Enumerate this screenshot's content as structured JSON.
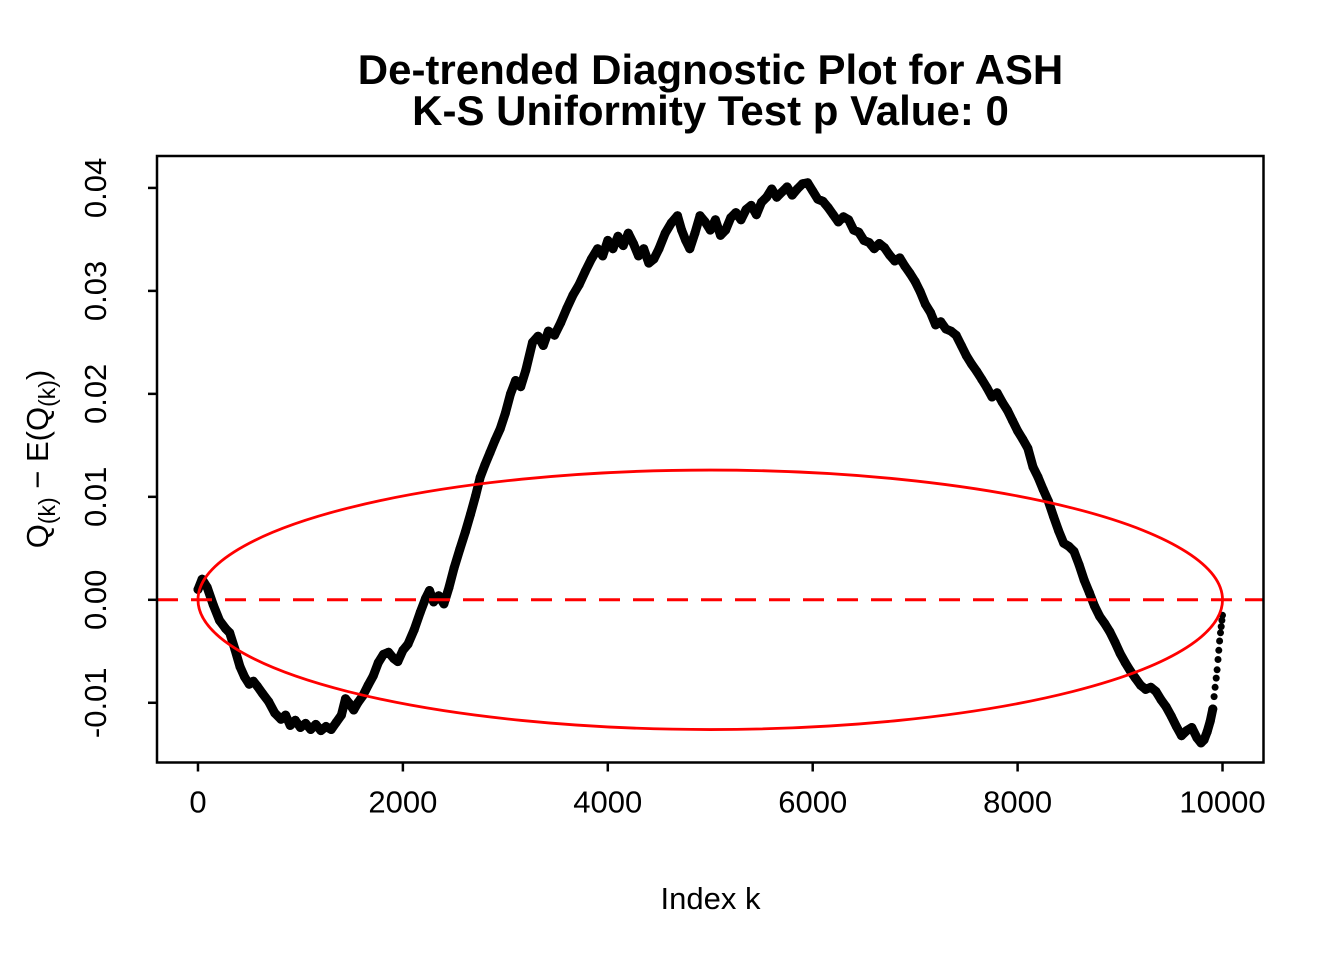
{
  "chart_data": {
    "type": "line",
    "title_lines": [
      "De-trended Diagnostic Plot for ASH",
      "K-S Uniformity Test p Value: 0"
    ],
    "ks_test_p_value": 0,
    "xlabel": "Index k",
    "ylabel": "Q(k) − E(Q(k))",
    "ylabel_parts": [
      {
        "t": "Q"
      },
      {
        "t": "(k)",
        "sub": true
      },
      {
        "t": " − E(Q"
      },
      {
        "t": "(k)",
        "sub": true
      },
      {
        "t": ")"
      }
    ],
    "xlim": [
      -400,
      10400
    ],
    "ylim": [
      -0.0158,
      0.0431
    ],
    "xticks": [
      0,
      2000,
      4000,
      6000,
      8000,
      10000
    ],
    "xtick_labels": [
      "0",
      "2000",
      "4000",
      "6000",
      "8000",
      "10000"
    ],
    "yticks": [
      -0.01,
      0.0,
      0.01,
      0.02,
      0.03,
      0.04
    ],
    "ytick_labels": [
      "-0.01",
      "0.00",
      "0.01",
      "0.02",
      "0.03",
      "0.04"
    ],
    "grid": false,
    "legend": null,
    "colors": {
      "series": "#000000",
      "reference": "#FF0000",
      "box": "#000000"
    },
    "series": [
      {
        "name": "detrended-order-statistics",
        "type": "points",
        "color": "#000000",
        "points": [
          [
            0,
            0.001
          ],
          [
            40,
            0.002
          ],
          [
            90,
            0.0012
          ],
          [
            150,
            -0.0005
          ],
          [
            210,
            -0.002
          ],
          [
            270,
            -0.0028
          ],
          [
            310,
            -0.0032
          ],
          [
            360,
            -0.0048
          ],
          [
            410,
            -0.0065
          ],
          [
            455,
            -0.0075
          ],
          [
            500,
            -0.0082
          ],
          [
            540,
            -0.0079
          ],
          [
            580,
            -0.0084
          ],
          [
            630,
            -0.0091
          ],
          [
            690,
            -0.0099
          ],
          [
            750,
            -0.011
          ],
          [
            810,
            -0.0116
          ],
          [
            855,
            -0.0112
          ],
          [
            900,
            -0.0122
          ],
          [
            950,
            -0.0117
          ],
          [
            1000,
            -0.0124
          ],
          [
            1050,
            -0.012
          ],
          [
            1100,
            -0.0126
          ],
          [
            1150,
            -0.0121
          ],
          [
            1200,
            -0.0127
          ],
          [
            1250,
            -0.0123
          ],
          [
            1300,
            -0.0126
          ],
          [
            1350,
            -0.0119
          ],
          [
            1400,
            -0.0112
          ],
          [
            1440,
            -0.0096
          ],
          [
            1480,
            -0.0101
          ],
          [
            1520,
            -0.0107
          ],
          [
            1560,
            -0.01
          ],
          [
            1610,
            -0.0093
          ],
          [
            1660,
            -0.0083
          ],
          [
            1710,
            -0.0074
          ],
          [
            1760,
            -0.0061
          ],
          [
            1810,
            -0.0053
          ],
          [
            1860,
            -0.0051
          ],
          [
            1910,
            -0.0057
          ],
          [
            1950,
            -0.006
          ],
          [
            2000,
            -0.0049
          ],
          [
            2050,
            -0.0043
          ],
          [
            2110,
            -0.0029
          ],
          [
            2170,
            -0.0012
          ],
          [
            2220,
            0.0001
          ],
          [
            2260,
            0.0009
          ],
          [
            2300,
            -0.0002
          ],
          [
            2350,
            0.0004
          ],
          [
            2400,
            -0.0004
          ],
          [
            2450,
            0.0012
          ],
          [
            2500,
            0.0031
          ],
          [
            2555,
            0.0049
          ],
          [
            2610,
            0.0066
          ],
          [
            2660,
            0.0083
          ],
          [
            2710,
            0.0101
          ],
          [
            2755,
            0.0119
          ],
          [
            2800,
            0.0131
          ],
          [
            2850,
            0.0143
          ],
          [
            2900,
            0.0155
          ],
          [
            2950,
            0.0166
          ],
          [
            3000,
            0.0181
          ],
          [
            3050,
            0.02
          ],
          [
            3100,
            0.0213
          ],
          [
            3150,
            0.0207
          ],
          [
            3200,
            0.0223
          ],
          [
            3265,
            0.025
          ],
          [
            3320,
            0.0256
          ],
          [
            3370,
            0.0247
          ],
          [
            3420,
            0.0261
          ],
          [
            3480,
            0.0257
          ],
          [
            3540,
            0.0269
          ],
          [
            3600,
            0.0283
          ],
          [
            3660,
            0.0296
          ],
          [
            3720,
            0.0306
          ],
          [
            3780,
            0.0319
          ],
          [
            3840,
            0.0331
          ],
          [
            3900,
            0.0341
          ],
          [
            3950,
            0.0334
          ],
          [
            4000,
            0.0349
          ],
          [
            4050,
            0.0341
          ],
          [
            4100,
            0.0353
          ],
          [
            4150,
            0.0344
          ],
          [
            4200,
            0.0356
          ],
          [
            4250,
            0.0346
          ],
          [
            4300,
            0.0334
          ],
          [
            4350,
            0.0341
          ],
          [
            4400,
            0.0327
          ],
          [
            4450,
            0.0331
          ],
          [
            4500,
            0.0341
          ],
          [
            4560,
            0.0356
          ],
          [
            4620,
            0.0366
          ],
          [
            4680,
            0.0373
          ],
          [
            4720,
            0.0359
          ],
          [
            4760,
            0.0349
          ],
          [
            4800,
            0.0341
          ],
          [
            4850,
            0.0356
          ],
          [
            4900,
            0.0373
          ],
          [
            4950,
            0.0367
          ],
          [
            5000,
            0.0359
          ],
          [
            5050,
            0.0369
          ],
          [
            5100,
            0.0354
          ],
          [
            5150,
            0.0359
          ],
          [
            5200,
            0.0371
          ],
          [
            5250,
            0.0376
          ],
          [
            5300,
            0.0369
          ],
          [
            5350,
            0.0379
          ],
          [
            5400,
            0.0383
          ],
          [
            5450,
            0.0374
          ],
          [
            5500,
            0.0386
          ],
          [
            5550,
            0.0391
          ],
          [
            5600,
            0.0399
          ],
          [
            5650,
            0.0391
          ],
          [
            5700,
            0.0396
          ],
          [
            5750,
            0.0401
          ],
          [
            5800,
            0.0393
          ],
          [
            5850,
            0.0399
          ],
          [
            5900,
            0.0404
          ],
          [
            5950,
            0.0405
          ],
          [
            6000,
            0.0397
          ],
          [
            6050,
            0.0389
          ],
          [
            6100,
            0.0387
          ],
          [
            6150,
            0.0381
          ],
          [
            6200,
            0.0374
          ],
          [
            6250,
            0.0367
          ],
          [
            6300,
            0.0372
          ],
          [
            6350,
            0.0369
          ],
          [
            6400,
            0.0359
          ],
          [
            6450,
            0.0357
          ],
          [
            6500,
            0.0349
          ],
          [
            6550,
            0.0347
          ],
          [
            6600,
            0.0341
          ],
          [
            6650,
            0.0346
          ],
          [
            6700,
            0.0342
          ],
          [
            6750,
            0.0335
          ],
          [
            6800,
            0.0329
          ],
          [
            6850,
            0.0332
          ],
          [
            6900,
            0.0324
          ],
          [
            6950,
            0.0317
          ],
          [
            7000,
            0.0309
          ],
          [
            7050,
            0.0299
          ],
          [
            7100,
            0.0287
          ],
          [
            7150,
            0.0279
          ],
          [
            7200,
            0.0267
          ],
          [
            7250,
            0.027
          ],
          [
            7300,
            0.0263
          ],
          [
            7350,
            0.0261
          ],
          [
            7400,
            0.0257
          ],
          [
            7450,
            0.0247
          ],
          [
            7500,
            0.0237
          ],
          [
            7550,
            0.0229
          ],
          [
            7600,
            0.0222
          ],
          [
            7650,
            0.0214
          ],
          [
            7700,
            0.0206
          ],
          [
            7750,
            0.0197
          ],
          [
            7800,
            0.0201
          ],
          [
            7850,
            0.0192
          ],
          [
            7900,
            0.0184
          ],
          [
            7950,
            0.0174
          ],
          [
            8000,
            0.0164
          ],
          [
            8050,
            0.0156
          ],
          [
            8100,
            0.0147
          ],
          [
            8150,
            0.0129
          ],
          [
            8200,
            0.0119
          ],
          [
            8250,
            0.0107
          ],
          [
            8300,
            0.0096
          ],
          [
            8350,
            0.0081
          ],
          [
            8400,
            0.0067
          ],
          [
            8450,
            0.0055
          ],
          [
            8500,
            0.0052
          ],
          [
            8550,
            0.0047
          ],
          [
            8600,
            0.0034
          ],
          [
            8650,
            0.0019
          ],
          [
            8700,
            0.0007
          ],
          [
            8750,
            -0.0006
          ],
          [
            8800,
            -0.0016
          ],
          [
            8850,
            -0.0023
          ],
          [
            8900,
            -0.0031
          ],
          [
            8950,
            -0.0041
          ],
          [
            9000,
            -0.0052
          ],
          [
            9050,
            -0.0061
          ],
          [
            9100,
            -0.0069
          ],
          [
            9150,
            -0.0076
          ],
          [
            9200,
            -0.0083
          ],
          [
            9250,
            -0.0087
          ],
          [
            9300,
            -0.0085
          ],
          [
            9350,
            -0.0089
          ],
          [
            9400,
            -0.0097
          ],
          [
            9450,
            -0.0104
          ],
          [
            9500,
            -0.0113
          ],
          [
            9550,
            -0.0123
          ],
          [
            9600,
            -0.0132
          ],
          [
            9650,
            -0.0127
          ],
          [
            9700,
            -0.0124
          ],
          [
            9750,
            -0.0134
          ],
          [
            9790,
            -0.0139
          ],
          [
            9820,
            -0.0136
          ],
          [
            9850,
            -0.0128
          ],
          [
            9880,
            -0.0118
          ],
          [
            9905,
            -0.0106
          ]
        ]
      },
      {
        "name": "tail-dots",
        "type": "dots",
        "color": "#000000",
        "points": [
          [
            9918,
            -0.0094
          ],
          [
            9928,
            -0.0085
          ],
          [
            9938,
            -0.0076
          ],
          [
            9947,
            -0.0068
          ],
          [
            9956,
            -0.0058
          ],
          [
            9964,
            -0.0049
          ],
          [
            9972,
            -0.004
          ],
          [
            9980,
            -0.0032
          ],
          [
            9987,
            -0.0026
          ],
          [
            9994,
            -0.002
          ],
          [
            10000,
            -0.0015
          ]
        ]
      }
    ],
    "reference": {
      "ellipse": {
        "cx": 5000,
        "cy": 0,
        "rx": 5000,
        "ry": 0.0126,
        "color": "#FF0000"
      },
      "zero_line": {
        "y": 0,
        "style": "dashed",
        "color": "#FF0000"
      }
    }
  }
}
